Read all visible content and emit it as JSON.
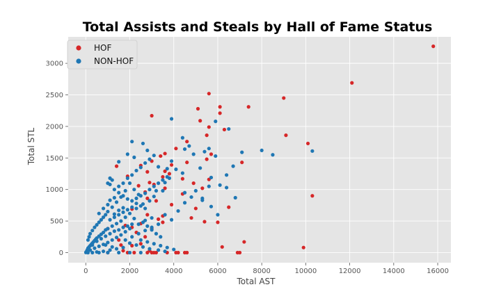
{
  "chart_data": {
    "type": "scatter",
    "title": "Total Assists and Steals by Hall of Fame Status",
    "xlabel": "Total AST",
    "ylabel": "Total STL",
    "xlim": [
      -800,
      16600
    ],
    "ylim": [
      -160,
      3420
    ],
    "xticks": [
      0,
      2000,
      4000,
      6000,
      8000,
      10000,
      12000,
      14000,
      16000
    ],
    "yticks": [
      0,
      500,
      1000,
      1500,
      2000,
      2500,
      3000
    ],
    "grid": true,
    "legend_position": "top-left",
    "series": [
      {
        "name": "HOF",
        "color": "#d62728",
        "points": [
          [
            15800,
            3270
          ],
          [
            12100,
            2690
          ],
          [
            5600,
            2520
          ],
          [
            9000,
            2450
          ],
          [
            7400,
            2310
          ],
          [
            6100,
            2310
          ],
          [
            5100,
            2280
          ],
          [
            6100,
            2210
          ],
          [
            3000,
            2170
          ],
          [
            5200,
            2090
          ],
          [
            5600,
            1990
          ],
          [
            6300,
            1950
          ],
          [
            9100,
            1860
          ],
          [
            5500,
            1860
          ],
          [
            4600,
            1760
          ],
          [
            10100,
            1730
          ],
          [
            4100,
            1650
          ],
          [
            3600,
            1570
          ],
          [
            5700,
            1560
          ],
          [
            3400,
            1530
          ],
          [
            5500,
            1480
          ],
          [
            7100,
            1430
          ],
          [
            3000,
            1450
          ],
          [
            4600,
            1430
          ],
          [
            1400,
            1370
          ],
          [
            2500,
            1380
          ],
          [
            3900,
            1390
          ],
          [
            2800,
            1280
          ],
          [
            3600,
            1290
          ],
          [
            3800,
            1250
          ],
          [
            3500,
            1200
          ],
          [
            1900,
            1210
          ],
          [
            4400,
            1170
          ],
          [
            5600,
            1160
          ],
          [
            2900,
            1110
          ],
          [
            4900,
            1100
          ],
          [
            3100,
            1080
          ],
          [
            2400,
            1060
          ],
          [
            3600,
            1020
          ],
          [
            5300,
            1020
          ],
          [
            2700,
            960
          ],
          [
            4400,
            930
          ],
          [
            10300,
            900
          ],
          [
            2800,
            860
          ],
          [
            3200,
            820
          ],
          [
            3900,
            760
          ],
          [
            5000,
            700
          ],
          [
            2100,
            690
          ],
          [
            6500,
            720
          ],
          [
            3500,
            580
          ],
          [
            2800,
            600
          ],
          [
            4800,
            550
          ],
          [
            3300,
            530
          ],
          [
            5400,
            490
          ],
          [
            6000,
            480
          ],
          [
            3500,
            480
          ],
          [
            2500,
            460
          ],
          [
            1800,
            430
          ],
          [
            2100,
            400
          ],
          [
            3000,
            380
          ],
          [
            1000,
            380
          ],
          [
            2300,
            320
          ],
          [
            2700,
            250
          ],
          [
            1500,
            200
          ],
          [
            7200,
            170
          ],
          [
            2500,
            140
          ],
          [
            1600,
            120
          ],
          [
            2100,
            110
          ],
          [
            6200,
            90
          ],
          [
            9900,
            80
          ],
          [
            2900,
            30
          ],
          [
            1700,
            30
          ],
          [
            3100,
            0
          ],
          [
            3200,
            0
          ],
          [
            2200,
            0
          ],
          [
            1000,
            0
          ],
          [
            3700,
            0
          ],
          [
            4100,
            0
          ],
          [
            4200,
            0
          ],
          [
            4500,
            0
          ],
          [
            4600,
            0
          ],
          [
            6900,
            0
          ],
          [
            7000,
            0
          ],
          [
            1900,
            0
          ],
          [
            2800,
            0
          ],
          [
            3000,
            0
          ]
        ]
      },
      {
        "name": "NON-HOF",
        "color": "#1f77b4",
        "points": [
          [
            10300,
            1610
          ],
          [
            8000,
            1620
          ],
          [
            8500,
            1550
          ],
          [
            7100,
            1590
          ],
          [
            6500,
            1960
          ],
          [
            5900,
            2080
          ],
          [
            3900,
            2120
          ],
          [
            4400,
            1820
          ],
          [
            4700,
            1690
          ],
          [
            5600,
            1650
          ],
          [
            5400,
            1600
          ],
          [
            4500,
            1640
          ],
          [
            4900,
            1560
          ],
          [
            5900,
            1530
          ],
          [
            6700,
            1370
          ],
          [
            6400,
            1230
          ],
          [
            5700,
            1190
          ],
          [
            6100,
            1070
          ],
          [
            6400,
            1030
          ],
          [
            6800,
            870
          ],
          [
            5200,
            1340
          ],
          [
            4400,
            1260
          ],
          [
            4100,
            1320
          ],
          [
            3900,
            1450
          ],
          [
            3700,
            1330
          ],
          [
            3300,
            1360
          ],
          [
            2800,
            1620
          ],
          [
            2600,
            1730
          ],
          [
            2100,
            1760
          ],
          [
            2200,
            1510
          ],
          [
            1900,
            1560
          ],
          [
            1500,
            1440
          ],
          [
            3800,
            1180
          ],
          [
            3600,
            1110
          ],
          [
            3200,
            980
          ],
          [
            4500,
            950
          ],
          [
            4800,
            880
          ],
          [
            4500,
            790
          ],
          [
            4200,
            660
          ],
          [
            3900,
            520
          ],
          [
            3600,
            600
          ],
          [
            3000,
            550
          ],
          [
            2700,
            510
          ],
          [
            5600,
            1050
          ],
          [
            5000,
            980
          ],
          [
            5300,
            860
          ],
          [
            5700,
            730
          ],
          [
            5300,
            830
          ],
          [
            6000,
            600
          ],
          [
            3500,
            980
          ],
          [
            3100,
            890
          ],
          [
            2900,
            820
          ],
          [
            2600,
            770
          ],
          [
            2300,
            700
          ],
          [
            2000,
            620
          ],
          [
            1800,
            560
          ],
          [
            1600,
            500
          ],
          [
            1400,
            460
          ],
          [
            1200,
            420
          ],
          [
            1000,
            380
          ],
          [
            900,
            360
          ],
          [
            800,
            320
          ],
          [
            700,
            290
          ],
          [
            600,
            260
          ],
          [
            500,
            230
          ],
          [
            450,
            210
          ],
          [
            400,
            190
          ],
          [
            350,
            170
          ],
          [
            300,
            150
          ],
          [
            250,
            130
          ],
          [
            200,
            110
          ],
          [
            150,
            90
          ],
          [
            100,
            70
          ],
          [
            80,
            50
          ],
          [
            60,
            35
          ],
          [
            40,
            20
          ],
          [
            20,
            10
          ],
          [
            10,
            5
          ],
          [
            5,
            2
          ],
          [
            1200,
            1150
          ],
          [
            1100,
            1080
          ],
          [
            1300,
            1000
          ],
          [
            1500,
            950
          ],
          [
            1700,
            900
          ],
          [
            1900,
            850
          ],
          [
            2100,
            820
          ],
          [
            2300,
            780
          ],
          [
            2500,
            740
          ],
          [
            2700,
            700
          ],
          [
            2200,
            1000
          ],
          [
            2400,
            920
          ],
          [
            2000,
            1100
          ],
          [
            1800,
            980
          ],
          [
            1600,
            880
          ],
          [
            1400,
            800
          ],
          [
            1200,
            720
          ],
          [
            1000,
            650
          ],
          [
            900,
            600
          ],
          [
            800,
            560
          ],
          [
            700,
            520
          ],
          [
            600,
            480
          ],
          [
            500,
            440
          ],
          [
            400,
            400
          ],
          [
            300,
            350
          ],
          [
            200,
            300
          ],
          [
            150,
            250
          ],
          [
            100,
            200
          ],
          [
            1300,
            610
          ],
          [
            1500,
            670
          ],
          [
            1700,
            710
          ],
          [
            2600,
            480
          ],
          [
            2800,
            420
          ],
          [
            3000,
            360
          ],
          [
            3200,
            300
          ],
          [
            3400,
            250
          ],
          [
            2200,
            540
          ],
          [
            2400,
            450
          ],
          [
            2000,
            380
          ],
          [
            1800,
            330
          ],
          [
            1600,
            280
          ],
          [
            1400,
            240
          ],
          [
            1200,
            200
          ],
          [
            1000,
            160
          ],
          [
            800,
            130
          ],
          [
            600,
            100
          ],
          [
            400,
            70
          ],
          [
            200,
            40
          ],
          [
            1100,
            300
          ],
          [
            1300,
            340
          ],
          [
            1500,
            360
          ],
          [
            1700,
            400
          ],
          [
            1900,
            420
          ],
          [
            2100,
            450
          ],
          [
            900,
            260
          ],
          [
            700,
            220
          ],
          [
            500,
            180
          ],
          [
            300,
            120
          ],
          [
            1100,
            520
          ],
          [
            1300,
            560
          ],
          [
            1500,
            600
          ],
          [
            1700,
            640
          ],
          [
            1900,
            680
          ],
          [
            2100,
            720
          ],
          [
            2300,
            860
          ],
          [
            2500,
            900
          ],
          [
            2700,
            940
          ],
          [
            2900,
            1000
          ],
          [
            3100,
            1050
          ],
          [
            3300,
            1100
          ],
          [
            3500,
            1150
          ],
          [
            3700,
            1200
          ],
          [
            2000,
            150
          ],
          [
            2300,
            120
          ],
          [
            2600,
            90
          ],
          [
            2900,
            60
          ],
          [
            3300,
            40
          ],
          [
            3600,
            20
          ],
          [
            1700,
            80
          ],
          [
            1400,
            60
          ],
          [
            1100,
            40
          ],
          [
            800,
            20
          ],
          [
            500,
            10
          ],
          [
            2500,
            200
          ],
          [
            2800,
            170
          ],
          [
            3100,
            140
          ],
          [
            3400,
            110
          ],
          [
            3700,
            80
          ],
          [
            4000,
            50
          ],
          [
            1000,
            0
          ],
          [
            1500,
            0
          ],
          [
            2000,
            0
          ],
          [
            2500,
            0
          ],
          [
            600,
            0
          ],
          [
            300,
            0
          ],
          [
            100,
            0
          ],
          [
            900,
            120
          ],
          [
            1200,
            90
          ],
          [
            1800,
            200
          ],
          [
            2100,
            250
          ],
          [
            2400,
            300
          ],
          [
            2700,
            350
          ],
          [
            3000,
            400
          ],
          [
            3300,
            450
          ],
          [
            600,
            620
          ],
          [
            800,
            700
          ],
          [
            1000,
            760
          ],
          [
            1100,
            830
          ],
          [
            1300,
            870
          ],
          [
            1500,
            1050
          ],
          [
            1700,
            1100
          ],
          [
            1900,
            1180
          ],
          [
            2100,
            1230
          ],
          [
            2300,
            1300
          ],
          [
            2500,
            1350
          ],
          [
            2700,
            1420
          ],
          [
            2900,
            1480
          ],
          [
            3100,
            1540
          ],
          [
            1000,
            1100
          ],
          [
            1100,
            1180
          ]
        ]
      }
    ]
  }
}
